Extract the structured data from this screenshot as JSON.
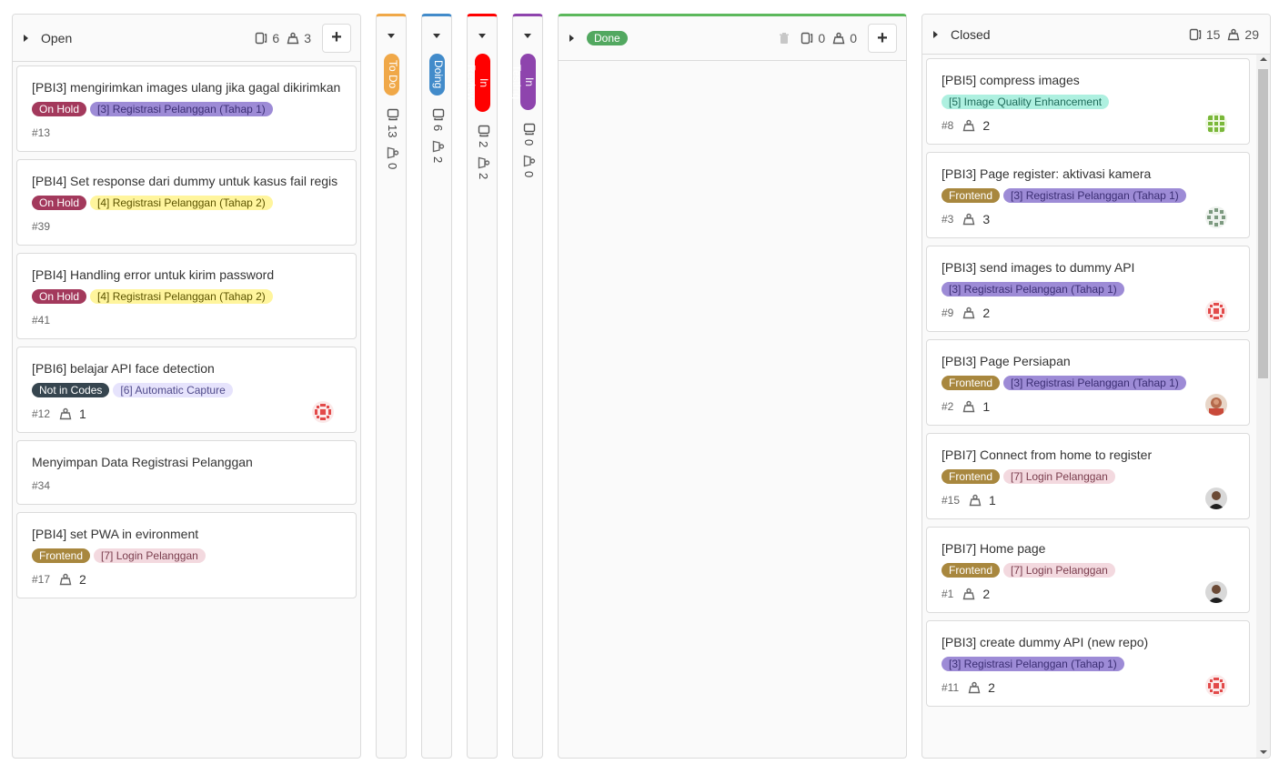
{
  "lists": {
    "open": {
      "title": "Open",
      "issue_count": "6",
      "weight": "3",
      "cards": [
        {
          "title": "[PBI3] mengirimkan images ulang jika gagal dikirimkan",
          "labels": [
            {
              "text": "On Hold",
              "bg": "#a3395c",
              "fg": "#ffffff"
            },
            {
              "text": "[3] Registrasi Pelanggan (Tahap 1)",
              "bg": "#9d8bd6",
              "fg": "#3b2e73"
            }
          ],
          "number": "#13",
          "weight": "",
          "avatar": ""
        },
        {
          "title": "[PBI4] Set response dari dummy untuk kasus fail regis",
          "labels": [
            {
              "text": "On Hold",
              "bg": "#a3395c",
              "fg": "#ffffff"
            },
            {
              "text": "[4] Registrasi Pelanggan (Tahap 2)",
              "bg": "#fff59d",
              "fg": "#5c5400"
            }
          ],
          "number": "#39",
          "weight": "",
          "avatar": ""
        },
        {
          "title": "[PBI4] Handling error untuk kirim password",
          "labels": [
            {
              "text": "On Hold",
              "bg": "#a3395c",
              "fg": "#ffffff"
            },
            {
              "text": "[4] Registrasi Pelanggan (Tahap 2)",
              "bg": "#fff59d",
              "fg": "#5c5400"
            }
          ],
          "number": "#41",
          "weight": "",
          "avatar": ""
        },
        {
          "title": "[PBI6] belajar API face detection",
          "labels": [
            {
              "text": "Not in Codes",
              "bg": "#36454f",
              "fg": "#ffffff"
            },
            {
              "text": "[6] Automatic Capture",
              "bg": "#e6e3fc",
              "fg": "#4f4a8a"
            }
          ],
          "number": "#12",
          "weight": "1",
          "avatar": "red-pattern"
        },
        {
          "title": "Menyimpan Data Registrasi Pelanggan",
          "labels": [],
          "number": "#34",
          "weight": "",
          "avatar": ""
        },
        {
          "title": "[PBI4] set PWA in evironment",
          "labels": [
            {
              "text": "Frontend",
              "bg": "#a8873e",
              "fg": "#ffffff"
            },
            {
              "text": "[7] Login Pelanggan",
              "bg": "#f3d9df",
              "fg": "#7a3d4d"
            }
          ],
          "number": "#17",
          "weight": "2",
          "avatar": ""
        }
      ]
    },
    "collapsed": [
      {
        "title": "To Do",
        "color": "#f0a848",
        "issue_count": "13",
        "weight": "0"
      },
      {
        "title": "Doing",
        "color": "#428bca",
        "issue_count": "6",
        "weight": "2"
      },
      {
        "title": "In Review",
        "color": "#ff0000",
        "issue_count": "2",
        "weight": "2"
      },
      {
        "title": "In Testing",
        "color": "#8e44ad",
        "issue_count": "0",
        "weight": "0"
      }
    ],
    "done": {
      "title": "Done",
      "color": "#5cb85c",
      "issue_count": "0",
      "weight": "0"
    },
    "closed": {
      "title": "Closed",
      "issue_count": "15",
      "weight": "29",
      "cards": [
        {
          "title": "[PBI5] compress images",
          "labels": [
            {
              "text": "[5] Image Quality Enhancement",
              "bg": "#aef0e0",
              "fg": "#1f6b5a"
            }
          ],
          "number": "#8",
          "weight": "2",
          "avatar": "green-pattern"
        },
        {
          "title": "[PBI3] Page register: aktivasi kamera",
          "labels": [
            {
              "text": "Frontend",
              "bg": "#a8873e",
              "fg": "#ffffff"
            },
            {
              "text": "[3] Registrasi Pelanggan (Tahap 1)",
              "bg": "#9d8bd6",
              "fg": "#3b2e73"
            }
          ],
          "number": "#3",
          "weight": "3",
          "avatar": "gray-pattern"
        },
        {
          "title": "[PBI3] send images to dummy API",
          "labels": [
            {
              "text": "[3] Registrasi Pelanggan (Tahap 1)",
              "bg": "#9d8bd6",
              "fg": "#3b2e73"
            }
          ],
          "number": "#9",
          "weight": "2",
          "avatar": "red-pattern"
        },
        {
          "title": "[PBI3] Page Persiapan",
          "labels": [
            {
              "text": "Frontend",
              "bg": "#a8873e",
              "fg": "#ffffff"
            },
            {
              "text": "[3] Registrasi Pelanggan (Tahap 1)",
              "bg": "#9d8bd6",
              "fg": "#3b2e73"
            }
          ],
          "number": "#2",
          "weight": "1",
          "avatar": "photo-a"
        },
        {
          "title": "[PBI7] Connect from home to register",
          "labels": [
            {
              "text": "Frontend",
              "bg": "#a8873e",
              "fg": "#ffffff"
            },
            {
              "text": "[7] Login Pelanggan",
              "bg": "#f3d9df",
              "fg": "#7a3d4d"
            }
          ],
          "number": "#15",
          "weight": "1",
          "avatar": "photo-b"
        },
        {
          "title": "[PBI7] Home page",
          "labels": [
            {
              "text": "Frontend",
              "bg": "#a8873e",
              "fg": "#ffffff"
            },
            {
              "text": "[7] Login Pelanggan",
              "bg": "#f3d9df",
              "fg": "#7a3d4d"
            }
          ],
          "number": "#1",
          "weight": "2",
          "avatar": "photo-b"
        },
        {
          "title": "[PBI3] create dummy API (new repo)",
          "labels": [
            {
              "text": "[3] Registrasi Pelanggan (Tahap 1)",
              "bg": "#9d8bd6",
              "fg": "#3b2e73"
            }
          ],
          "number": "#11",
          "weight": "2",
          "avatar": "red-pattern"
        }
      ]
    }
  }
}
